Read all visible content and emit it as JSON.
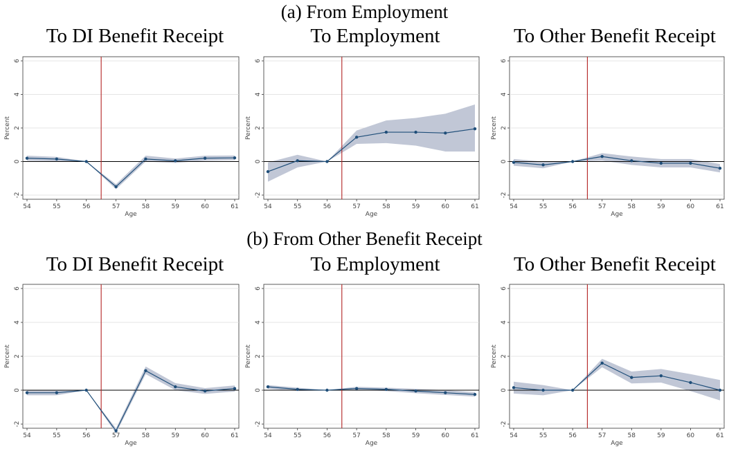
{
  "sections": [
    {
      "title": "(a) From Employment"
    },
    {
      "title": "(b) From Other Benefit Receipt"
    }
  ],
  "colors": {
    "line": "#1f4e79",
    "band": "#c1c7d6",
    "cutoff": "#b22222",
    "zero": "#000000",
    "grid": "#dddddd"
  },
  "chart_data": [
    {
      "type": "line",
      "section": "(a) From Employment",
      "title": "To DI Benefit Receipt",
      "xlabel": "Age",
      "ylabel": "Percent",
      "xlim": [
        54,
        61
      ],
      "ylim": [
        -2,
        6
      ],
      "xticks": [
        54,
        55,
        56,
        57,
        58,
        59,
        60,
        61
      ],
      "yticks": [
        -2,
        0,
        2,
        4,
        6
      ],
      "cutoff": 56.5,
      "x": [
        54,
        55,
        56,
        57,
        58,
        59,
        60,
        61
      ],
      "y": [
        0.2,
        0.15,
        0,
        -1.5,
        0.15,
        0.05,
        0.2,
        0.22
      ],
      "ci_low": [
        0.05,
        0.02,
        0,
        -1.65,
        0.0,
        -0.08,
        0.05,
        0.08
      ],
      "ci_high": [
        0.35,
        0.28,
        0,
        -1.35,
        0.35,
        0.18,
        0.35,
        0.36
      ]
    },
    {
      "type": "line",
      "section": "(a) From Employment",
      "title": "To Employment",
      "xlabel": "Age",
      "ylabel": "Percent",
      "xlim": [
        54,
        61
      ],
      "ylim": [
        -2,
        6
      ],
      "xticks": [
        54,
        55,
        56,
        57,
        58,
        59,
        60,
        61
      ],
      "yticks": [
        -2,
        0,
        2,
        4,
        6
      ],
      "cutoff": 56.5,
      "x": [
        54,
        55,
        56,
        57,
        58,
        59,
        60,
        61
      ],
      "y": [
        -0.6,
        0.05,
        0,
        1.45,
        1.75,
        1.75,
        1.7,
        1.95
      ],
      "ci_low": [
        -1.2,
        -0.35,
        0,
        1.05,
        1.1,
        0.95,
        0.6,
        0.6
      ],
      "ci_high": [
        -0.05,
        0.4,
        0,
        1.85,
        2.45,
        2.6,
        2.85,
        3.4
      ]
    },
    {
      "type": "line",
      "section": "(a) From Employment",
      "title": "To Other Benefit Receipt",
      "xlabel": "Age",
      "ylabel": "Percent",
      "xlim": [
        54,
        61
      ],
      "ylim": [
        -2,
        6
      ],
      "xticks": [
        54,
        55,
        56,
        57,
        58,
        59,
        60,
        61
      ],
      "yticks": [
        -2,
        0,
        2,
        4,
        6
      ],
      "cutoff": 56.5,
      "x": [
        54,
        55,
        56,
        57,
        58,
        59,
        60,
        61
      ],
      "y": [
        -0.05,
        -0.2,
        0,
        0.3,
        0.05,
        -0.1,
        -0.1,
        -0.4
      ],
      "ci_low": [
        -0.25,
        -0.4,
        0,
        0.05,
        -0.2,
        -0.35,
        -0.35,
        -0.65
      ],
      "ci_high": [
        0.15,
        0.0,
        0,
        0.5,
        0.3,
        0.15,
        0.15,
        -0.15
      ]
    },
    {
      "type": "line",
      "section": "(b) From Other Benefit Receipt",
      "title": "To DI Benefit Receipt",
      "xlabel": "Age",
      "ylabel": "Percent",
      "xlim": [
        54,
        61
      ],
      "ylim": [
        -2,
        6
      ],
      "xticks": [
        54,
        55,
        56,
        57,
        58,
        59,
        60,
        61
      ],
      "yticks": [
        -2,
        0,
        2,
        4,
        6
      ],
      "cutoff": 56.5,
      "x": [
        54,
        55,
        56,
        57,
        58,
        59,
        60,
        61
      ],
      "y": [
        -0.15,
        -0.15,
        0,
        -2.4,
        1.15,
        0.2,
        -0.05,
        0.1
      ],
      "ci_low": [
        -0.3,
        -0.3,
        0,
        -2.55,
        0.95,
        0.0,
        -0.22,
        -0.08
      ],
      "ci_high": [
        0.0,
        0.0,
        0,
        -2.25,
        1.4,
        0.42,
        0.12,
        0.28
      ]
    },
    {
      "type": "line",
      "section": "(b) From Other Benefit Receipt",
      "title": "To Employment",
      "xlabel": "Age",
      "ylabel": "Percent",
      "xlim": [
        54,
        61
      ],
      "ylim": [
        -2,
        6
      ],
      "xticks": [
        54,
        55,
        56,
        57,
        58,
        59,
        60,
        61
      ],
      "yticks": [
        -2,
        0,
        2,
        4,
        6
      ],
      "cutoff": 56.5,
      "x": [
        54,
        55,
        56,
        57,
        58,
        59,
        60,
        61
      ],
      "y": [
        0.2,
        0.05,
        0,
        0.1,
        0.05,
        -0.05,
        -0.15,
        -0.25
      ],
      "ci_low": [
        0.08,
        -0.05,
        0,
        0.0,
        -0.05,
        -0.18,
        -0.28,
        -0.38
      ],
      "ci_high": [
        0.3,
        0.15,
        0,
        0.2,
        0.15,
        0.08,
        0.0,
        -0.12
      ]
    },
    {
      "type": "line",
      "section": "(b) From Other Benefit Receipt",
      "title": "To Other Benefit Receipt",
      "xlabel": "Age",
      "ylabel": "Percent",
      "xlim": [
        54,
        61
      ],
      "ylim": [
        -2,
        6
      ],
      "xticks": [
        54,
        55,
        56,
        57,
        58,
        59,
        60,
        61
      ],
      "yticks": [
        -2,
        0,
        2,
        4,
        6
      ],
      "cutoff": 56.5,
      "x": [
        54,
        55,
        56,
        57,
        58,
        59,
        60,
        61
      ],
      "y": [
        0.15,
        0.0,
        0,
        1.6,
        0.75,
        0.85,
        0.45,
        0.0
      ],
      "ci_low": [
        -0.2,
        -0.3,
        0,
        1.35,
        0.4,
        0.45,
        -0.05,
        -0.6
      ],
      "ci_high": [
        0.5,
        0.3,
        0,
        1.85,
        1.1,
        1.25,
        0.95,
        0.6
      ]
    }
  ]
}
